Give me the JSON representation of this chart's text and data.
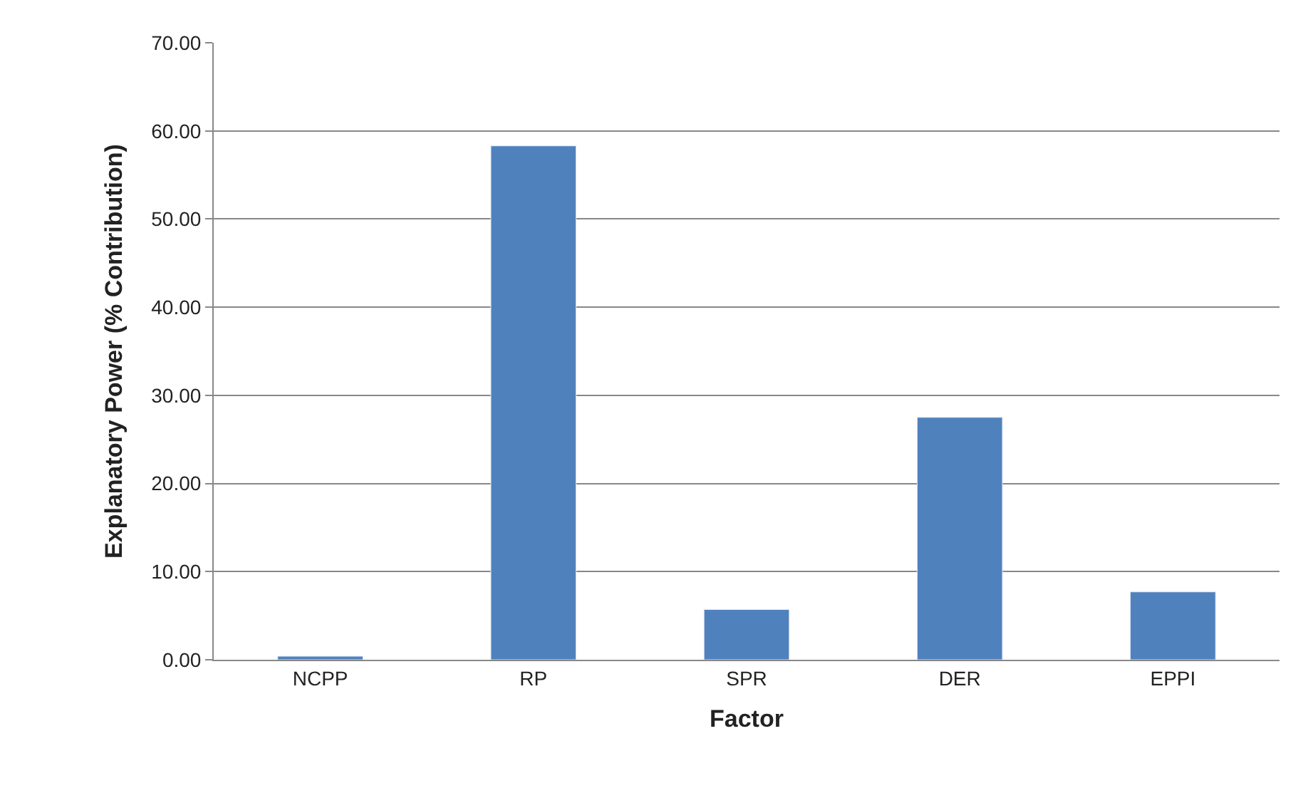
{
  "chart_data": {
    "type": "bar",
    "xlabel": "Factor",
    "ylabel": "Explanatory Power (% Contribution)",
    "categories": [
      "NCPP",
      "RP",
      "SPR",
      "DER",
      "EPPI"
    ],
    "values": [
      0.4,
      58.3,
      5.7,
      27.5,
      7.7
    ],
    "color": "#4f81bd",
    "ylim": [
      0,
      70
    ],
    "yticks": [
      {
        "value": 0,
        "label": "0.00"
      },
      {
        "value": 10,
        "label": "10.00"
      },
      {
        "value": 20,
        "label": "20.00"
      },
      {
        "value": 30,
        "label": "30.00"
      },
      {
        "value": 40,
        "label": "40.00"
      },
      {
        "value": 50,
        "label": "50.00"
      },
      {
        "value": 60,
        "label": "60.00"
      },
      {
        "value": 70,
        "label": "70.00"
      }
    ],
    "grid": "y"
  }
}
